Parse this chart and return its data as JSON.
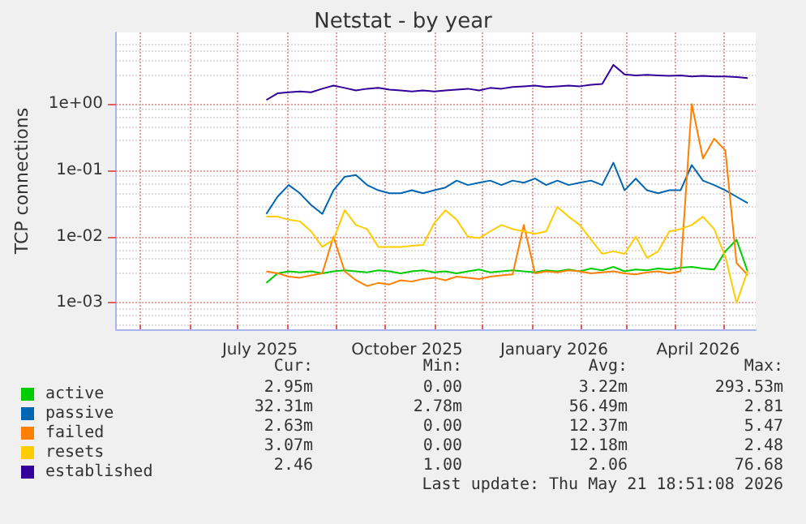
{
  "chart_data": {
    "type": "line",
    "title": "Netstat - by year",
    "ylabel": "TCP connections",
    "log": "y",
    "grid": true,
    "legend": "bottom left",
    "marker": "none",
    "line_style": "solid",
    "ylim": [
      0.0004,
      12
    ],
    "yticks": [
      {
        "value": 0.001,
        "label": "1e-03"
      },
      {
        "value": 0.01,
        "label": "1e-02"
      },
      {
        "value": 0.1,
        "label": "1e-01"
      },
      {
        "value": 1,
        "label": "1e+00"
      }
    ],
    "xlim": [
      "2025-04-16",
      "2026-05-21"
    ],
    "xticks": [
      {
        "value": "2025-05-01",
        "label": null
      },
      {
        "value": "2025-06-01",
        "label": null
      },
      {
        "value": "2025-07-01",
        "label": null
      },
      {
        "value": "2025-07-15",
        "label": "July 2025"
      },
      {
        "value": "2025-08-01",
        "label": null
      },
      {
        "value": "2025-09-01",
        "label": null
      },
      {
        "value": "2025-10-01",
        "label": null
      },
      {
        "value": "2025-10-15",
        "label": "October 2025"
      },
      {
        "value": "2025-11-01",
        "label": null
      },
      {
        "value": "2025-12-01",
        "label": null
      },
      {
        "value": "2026-01-01",
        "label": null
      },
      {
        "value": "2026-01-15",
        "label": "January 2026"
      },
      {
        "value": "2026-02-01",
        "label": null
      },
      {
        "value": "2026-03-01",
        "label": null
      },
      {
        "value": "2026-04-01",
        "label": null
      },
      {
        "value": "2026-04-15",
        "label": "April 2026"
      },
      {
        "value": "2026-05-01",
        "label": null
      }
    ],
    "x": [
      "2025-07-19",
      "2025-07-26",
      "2025-08-02",
      "2025-08-09",
      "2025-08-16",
      "2025-08-23",
      "2025-08-30",
      "2025-09-06",
      "2025-09-13",
      "2025-09-20",
      "2025-09-27",
      "2025-10-04",
      "2025-10-11",
      "2025-10-18",
      "2025-10-25",
      "2025-11-01",
      "2025-11-08",
      "2025-11-15",
      "2025-11-22",
      "2025-11-29",
      "2025-12-06",
      "2025-12-13",
      "2025-12-20",
      "2025-12-27",
      "2026-01-03",
      "2026-01-10",
      "2026-01-17",
      "2026-01-24",
      "2026-01-31",
      "2026-02-07",
      "2026-02-14",
      "2026-02-21",
      "2026-02-28",
      "2026-03-07",
      "2026-03-14",
      "2026-03-21",
      "2026-03-28",
      "2026-04-04",
      "2026-04-11",
      "2026-04-18",
      "2026-04-25",
      "2026-05-02",
      "2026-05-09",
      "2026-05-16"
    ],
    "series": [
      {
        "name": "active",
        "color": "#00cc00",
        "values": [
          0.002,
          0.0028,
          0.003,
          0.0029,
          0.003,
          0.0028,
          0.003,
          0.0031,
          0.003,
          0.0029,
          0.0031,
          0.003,
          0.0028,
          0.003,
          0.0031,
          0.0029,
          0.003,
          0.0028,
          0.003,
          0.0032,
          0.0029,
          0.003,
          0.0031,
          0.003,
          0.0029,
          0.0031,
          0.003,
          0.0032,
          0.003,
          0.0033,
          0.0031,
          0.0035,
          0.003,
          0.0032,
          0.0031,
          0.0033,
          0.0032,
          0.0034,
          0.0035,
          0.0033,
          0.0032,
          0.006,
          0.009,
          0.00295
        ]
      },
      {
        "name": "passive",
        "color": "#0066b3",
        "values": [
          0.022,
          0.04,
          0.06,
          0.045,
          0.03,
          0.022,
          0.05,
          0.08,
          0.085,
          0.06,
          0.05,
          0.045,
          0.045,
          0.05,
          0.045,
          0.05,
          0.055,
          0.07,
          0.06,
          0.065,
          0.07,
          0.06,
          0.07,
          0.065,
          0.075,
          0.06,
          0.07,
          0.06,
          0.065,
          0.07,
          0.06,
          0.13,
          0.05,
          0.075,
          0.05,
          0.045,
          0.05,
          0.05,
          0.12,
          0.07,
          0.06,
          0.05,
          0.04,
          0.032
        ]
      },
      {
        "name": "failed",
        "color": "#ff8000",
        "values": [
          0.003,
          0.0028,
          0.0025,
          0.0024,
          0.0026,
          0.0028,
          0.01,
          0.003,
          0.0022,
          0.0018,
          0.002,
          0.0019,
          0.0022,
          0.0021,
          0.0023,
          0.0024,
          0.0022,
          0.0025,
          0.0024,
          0.0023,
          0.0025,
          0.0026,
          0.0027,
          0.015,
          0.0028,
          0.003,
          0.0029,
          0.0031,
          0.003,
          0.0028,
          0.0029,
          0.003,
          0.0028,
          0.0027,
          0.0029,
          0.003,
          0.0028,
          0.003,
          1.0,
          0.15,
          0.3,
          0.2,
          0.004,
          0.00263
        ]
      },
      {
        "name": "resets",
        "color": "#ffcc00",
        "values": [
          0.02,
          0.02,
          0.018,
          0.017,
          0.012,
          0.007,
          0.009,
          0.025,
          0.015,
          0.013,
          0.007,
          0.007,
          0.007,
          0.0073,
          0.0075,
          0.016,
          0.025,
          0.018,
          0.01,
          0.0095,
          0.012,
          0.015,
          0.013,
          0.012,
          0.011,
          0.012,
          0.028,
          0.02,
          0.015,
          0.009,
          0.0055,
          0.006,
          0.0055,
          0.01,
          0.0048,
          0.006,
          0.012,
          0.013,
          0.015,
          0.02,
          0.013,
          0.005,
          0.001,
          0.00307
        ]
      },
      {
        "name": "established",
        "color": "#330099",
        "values": [
          1.15,
          1.45,
          1.5,
          1.55,
          1.5,
          1.7,
          1.9,
          1.75,
          1.6,
          1.7,
          1.75,
          1.65,
          1.6,
          1.55,
          1.6,
          1.55,
          1.6,
          1.65,
          1.7,
          1.6,
          1.75,
          1.7,
          1.8,
          1.85,
          1.9,
          1.8,
          1.85,
          1.9,
          1.85,
          1.95,
          2.0,
          3.9,
          2.8,
          2.7,
          2.75,
          2.7,
          2.65,
          2.7,
          2.6,
          2.65,
          2.6,
          2.6,
          2.55,
          2.46
        ]
      }
    ],
    "annotations": [
      "Cur:",
      "Min:",
      "Avg:",
      "Max:",
      "2.95m",
      "0.00",
      "3.22m",
      "293.53m",
      "32.31m",
      "2.78m",
      "56.49m",
      "2.81",
      "2.63m",
      "0.00",
      "12.37m",
      "5.47",
      "3.07m",
      "0.00",
      "12.18m",
      "2.48",
      "2.46",
      "1.00",
      "2.06",
      "76.68",
      "Last update: Thu May 21 18:51:08 2026"
    ]
  }
}
